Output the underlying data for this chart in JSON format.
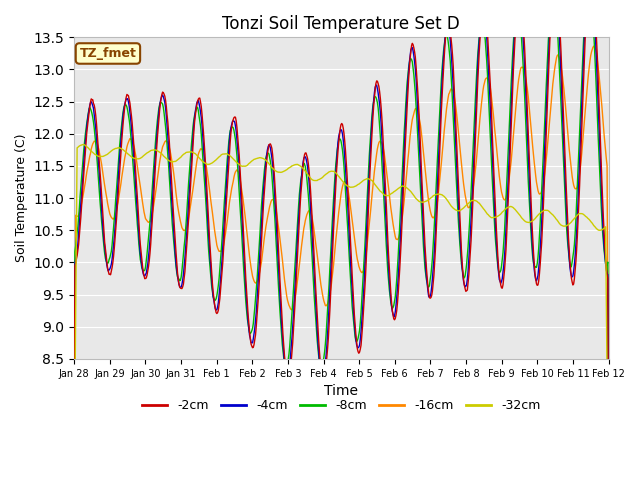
{
  "title": "Tonzi Soil Temperature Set D",
  "xlabel": "Time",
  "ylabel": "Soil Temperature (C)",
  "ylim": [
    8.5,
    13.5
  ],
  "yticks": [
    8.5,
    9.0,
    9.5,
    10.0,
    10.5,
    11.0,
    11.5,
    12.0,
    12.5,
    13.0,
    13.5
  ],
  "line_colors": {
    "-2cm": "#cc0000",
    "-4cm": "#0000cc",
    "-8cm": "#00bb00",
    "-16cm": "#ff8800",
    "-32cm": "#cccc00"
  },
  "legend_labels": [
    "-2cm",
    "-4cm",
    "-8cm",
    "-16cm",
    "-32cm"
  ],
  "annotation_text": "TZ_fmet",
  "annotation_bg": "#ffffcc",
  "annotation_border": "#884400",
  "bg_color": "#e8e8e8",
  "fig_bg": "#ffffff",
  "xtick_labels": [
    "Jan 28",
    "Jan 29",
    "Jan 30",
    "Jan 31",
    "Feb 1",
    "Feb 2",
    "Feb 3",
    "Feb 4",
    "Feb 5",
    "Feb 6",
    "Feb 7",
    "Feb 8",
    "Feb 9",
    "Feb 10",
    "Feb 11",
    "Feb 12"
  ],
  "n_points": 720
}
